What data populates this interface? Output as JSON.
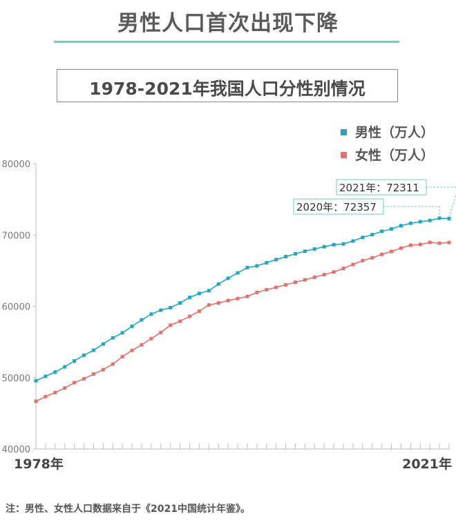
{
  "header": {
    "title": "男性人口首次出现下降",
    "subtitle": "1978-2021年我国人口分性别情况"
  },
  "note": "注：男性、女性人口数据来自于《2021中国统计年鉴》。",
  "colors": {
    "male": "#20a7c2",
    "female": "#e5716c",
    "axis": "#bbbbbb",
    "accent": "#6ecbc9"
  },
  "chart_data": {
    "type": "line",
    "title": "",
    "xlabel": "",
    "ylabel": "",
    "x_start_label": "1978年",
    "x_end_label": "2021年",
    "x": [
      1978,
      1979,
      1980,
      1981,
      1982,
      1983,
      1984,
      1985,
      1986,
      1987,
      1988,
      1989,
      1990,
      1991,
      1992,
      1993,
      1994,
      1995,
      1996,
      1997,
      1998,
      1999,
      2000,
      2001,
      2002,
      2003,
      2004,
      2005,
      2006,
      2007,
      2008,
      2009,
      2010,
      2011,
      2012,
      2013,
      2014,
      2015,
      2016,
      2017,
      2018,
      2019,
      2020,
      2021
    ],
    "ylim": [
      40000,
      80000
    ],
    "yticks": [
      "40000",
      "50000",
      "60000",
      "70000",
      "80000"
    ],
    "legend_position": "top-right",
    "series": [
      {
        "name": "男性（万人）",
        "color": "#20a7c2",
        "values": [
          49567,
          50192,
          50785,
          51519,
          52352,
          53152,
          53848,
          54725,
          55581,
          56290,
          57201,
          58099,
          58904,
          59466,
          59811,
          60472,
          61246,
          61808,
          62200,
          63131,
          63940,
          64692,
          65437,
          65672,
          66115,
          66556,
          66976,
          67375,
          67728,
          68048,
          68357,
          68647,
          68748,
          69161,
          69660,
          70063,
          70522,
          70857,
          71307,
          71650,
          71864,
          72039,
          72357,
          72311
        ]
      },
      {
        "name": "女性（万人）",
        "color": "#e5716c",
        "values": [
          46692,
          47350,
          47920,
          48553,
          49302,
          49852,
          50509,
          51121,
          51902,
          52952,
          53825,
          54611,
          55479,
          56337,
          57360,
          57910,
          58604,
          59327,
          60194,
          60480,
          60820,
          61094,
          61391,
          61955,
          62338,
          62671,
          63012,
          63381,
          63720,
          64085,
          64445,
          64822,
          65312,
          65875,
          66410,
          66809,
          67294,
          67696,
          68168,
          68575,
          68677,
          68969,
          68855,
          68949
        ]
      }
    ],
    "annotations": [
      {
        "text": "2021年：72311",
        "x": 2021,
        "series": "男性（万人）"
      },
      {
        "text": "2020年：72357",
        "x": 2020,
        "series": "男性（万人）"
      }
    ]
  }
}
